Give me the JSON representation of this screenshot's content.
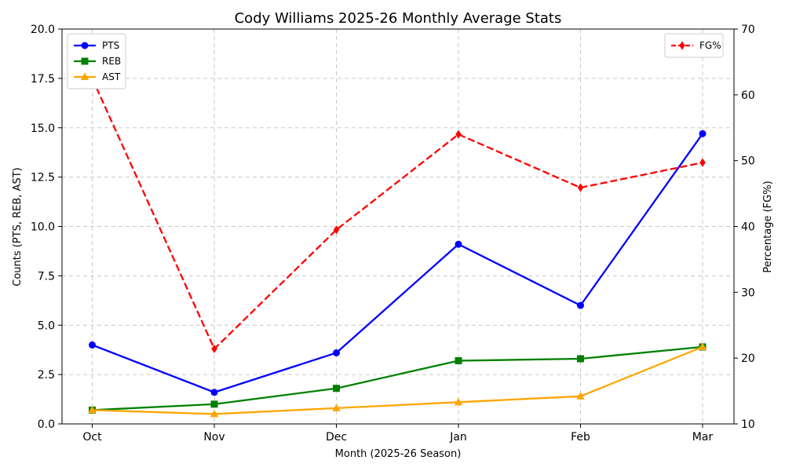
{
  "chart_data": {
    "type": "line",
    "title": "Cody Williams 2025-26 Monthly Average Stats",
    "xlabel": "Month (2025-26 Season)",
    "ylabel_left": "Counts (PTS, REB, AST)",
    "ylabel_right": "Percentage (FG%)",
    "categories": [
      "Oct",
      "Nov",
      "Dec",
      "Jan",
      "Feb",
      "Mar"
    ],
    "ylim_left": [
      0,
      20
    ],
    "yticks_left": [
      "0.0",
      "2.5",
      "5.0",
      "7.5",
      "10.0",
      "12.5",
      "15.0",
      "17.5",
      "20.0"
    ],
    "ylim_right": [
      10,
      70
    ],
    "yticks_right": [
      "10",
      "20",
      "30",
      "40",
      "50",
      "60",
      "70"
    ],
    "grid": true,
    "series": [
      {
        "name": "PTS",
        "axis": "left",
        "color": "#0000ff",
        "marker": "circle",
        "dash": "solid",
        "values": [
          4.0,
          1.6,
          3.6,
          9.1,
          6.0,
          14.7
        ]
      },
      {
        "name": "REB",
        "axis": "left",
        "color": "#008000",
        "marker": "square",
        "dash": "solid",
        "values": [
          0.7,
          1.0,
          1.8,
          3.2,
          3.3,
          3.9
        ]
      },
      {
        "name": "AST",
        "axis": "left",
        "color": "#ffa500",
        "marker": "triangle",
        "dash": "solid",
        "values": [
          0.7,
          0.5,
          0.8,
          1.1,
          1.4,
          3.9
        ]
      },
      {
        "name": "FG%",
        "axis": "right",
        "color": "#ff0000",
        "marker": "diamond",
        "dash": "dashed",
        "values": [
          62.5,
          21.4,
          39.5,
          54.0,
          45.9,
          49.7
        ]
      }
    ],
    "legend_left": "top-left",
    "legend_right": "top-right"
  }
}
